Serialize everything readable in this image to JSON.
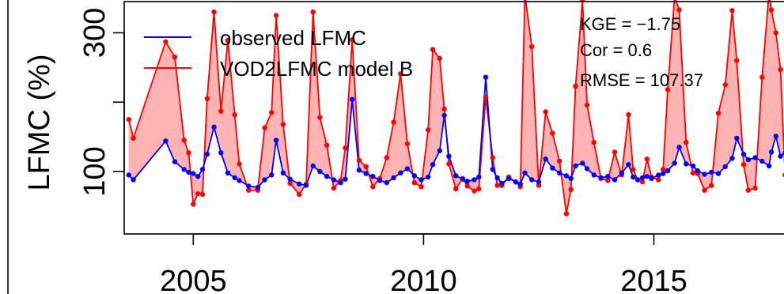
{
  "chart_data": {
    "type": "line",
    "title": "",
    "xlabel": "",
    "ylabel": "LFMC (%)",
    "xlim": [
      2003.5,
      2018.1
    ],
    "ylim": [
      10,
      345
    ],
    "x_ticks": [
      2005,
      2010,
      2015
    ],
    "x_tick_labels": [
      "2005",
      "2010",
      "2015"
    ],
    "y_ticks": [
      100,
      200,
      300
    ],
    "y_tick_labels": [
      "100",
      "",
      "300"
    ],
    "grid": false,
    "legend_position": "top-left",
    "annotations": [
      "KGE = −1.75",
      "Cor = 0.6",
      "RMSE = 107.37"
    ],
    "colors": {
      "observed": "#0000ff",
      "model": "#ff0000",
      "band": "#ffb3b3"
    },
    "series": [
      {
        "name": "observed LFMC",
        "points": [
          [
            2003.6,
            95
          ],
          [
            2003.7,
            88
          ],
          [
            2004.4,
            144
          ],
          [
            2004.6,
            114
          ],
          [
            2004.8,
            103
          ],
          [
            2004.9,
            99
          ],
          [
            2005.0,
            97
          ],
          [
            2005.1,
            93
          ],
          [
            2005.2,
            103
          ],
          [
            2005.3,
            125
          ],
          [
            2005.45,
            164
          ],
          [
            2005.6,
            127
          ],
          [
            2005.75,
            98
          ],
          [
            2005.9,
            91
          ],
          [
            2006.0,
            87
          ],
          [
            2006.2,
            79
          ],
          [
            2006.4,
            77
          ],
          [
            2006.55,
            88
          ],
          [
            2006.7,
            95
          ],
          [
            2006.8,
            145
          ],
          [
            2006.95,
            98
          ],
          [
            2007.1,
            89
          ],
          [
            2007.3,
            82
          ],
          [
            2007.45,
            80
          ],
          [
            2007.6,
            108
          ],
          [
            2007.75,
            100
          ],
          [
            2007.9,
            93
          ],
          [
            2008.05,
            88
          ],
          [
            2008.2,
            84
          ],
          [
            2008.3,
            89
          ],
          [
            2008.45,
            204
          ],
          [
            2008.6,
            102
          ],
          [
            2008.75,
            97
          ],
          [
            2008.9,
            93
          ],
          [
            2009.05,
            87
          ],
          [
            2009.2,
            84
          ],
          [
            2009.35,
            91
          ],
          [
            2009.5,
            98
          ],
          [
            2009.65,
            104
          ],
          [
            2009.8,
            94
          ],
          [
            2009.95,
            88
          ],
          [
            2010.1,
            92
          ],
          [
            2010.2,
            110
          ],
          [
            2010.35,
            130
          ],
          [
            2010.45,
            181
          ],
          [
            2010.55,
            122
          ],
          [
            2010.7,
            94
          ],
          [
            2010.85,
            89
          ],
          [
            2010.95,
            86
          ],
          [
            2011.1,
            88
          ],
          [
            2011.2,
            92
          ],
          [
            2011.35,
            236
          ],
          [
            2011.5,
            103
          ],
          [
            2011.6,
            91
          ],
          [
            2011.7,
            83
          ],
          [
            2011.85,
            90
          ],
          [
            2012.0,
            85
          ],
          [
            2012.1,
            82
          ],
          [
            2012.2,
            98
          ],
          [
            2012.35,
            88
          ],
          [
            2012.5,
            85
          ],
          [
            2012.65,
            118
          ],
          [
            2012.8,
            105
          ],
          [
            2012.95,
            98
          ],
          [
            2013.1,
            94
          ],
          [
            2013.2,
            90
          ],
          [
            2013.3,
            108
          ],
          [
            2013.45,
            112
          ],
          [
            2013.55,
            104
          ],
          [
            2013.7,
            95
          ],
          [
            2013.85,
            91
          ],
          [
            2014.0,
            93
          ],
          [
            2014.15,
            88
          ],
          [
            2014.3,
            98
          ],
          [
            2014.45,
            110
          ],
          [
            2014.55,
            92
          ],
          [
            2014.65,
            88
          ],
          [
            2014.75,
            91
          ],
          [
            2014.85,
            93
          ],
          [
            2014.95,
            90
          ],
          [
            2015.1,
            95
          ],
          [
            2015.2,
            97
          ],
          [
            2015.3,
            101
          ],
          [
            2015.45,
            112
          ],
          [
            2015.55,
            135
          ],
          [
            2015.7,
            111
          ],
          [
            2015.85,
            108
          ],
          [
            2015.95,
            101
          ],
          [
            2016.1,
            96
          ],
          [
            2016.25,
            99
          ],
          [
            2016.4,
            97
          ],
          [
            2016.55,
            107
          ],
          [
            2016.7,
            119
          ],
          [
            2016.8,
            148
          ],
          [
            2016.95,
            125
          ],
          [
            2017.05,
            117
          ],
          [
            2017.2,
            120
          ],
          [
            2017.35,
            115
          ],
          [
            2017.5,
            108
          ],
          [
            2017.55,
            128
          ],
          [
            2017.65,
            151
          ],
          [
            2017.75,
            122
          ],
          [
            2017.85,
            127
          ],
          [
            2017.95,
            111
          ],
          [
            2018.0,
            105
          ],
          [
            2018.05,
            92
          ]
        ]
      },
      {
        "name": "VOD2LFMC model B",
        "points": [
          [
            2003.6,
            175
          ],
          [
            2003.7,
            148
          ],
          [
            2004.4,
            287
          ],
          [
            2004.6,
            265
          ],
          [
            2004.8,
            145
          ],
          [
            2004.9,
            127
          ],
          [
            2005.0,
            53
          ],
          [
            2005.1,
            68
          ],
          [
            2005.2,
            67
          ],
          [
            2005.3,
            205
          ],
          [
            2005.45,
            330
          ],
          [
            2005.6,
            187
          ],
          [
            2005.75,
            289
          ],
          [
            2005.9,
            182
          ],
          [
            2006.0,
            111
          ],
          [
            2006.2,
            73
          ],
          [
            2006.4,
            73
          ],
          [
            2006.55,
            163
          ],
          [
            2006.7,
            185
          ],
          [
            2006.8,
            325
          ],
          [
            2006.95,
            168
          ],
          [
            2007.1,
            83
          ],
          [
            2007.3,
            67
          ],
          [
            2007.45,
            82
          ],
          [
            2007.6,
            330
          ],
          [
            2007.75,
            178
          ],
          [
            2007.9,
            138
          ],
          [
            2008.05,
            76
          ],
          [
            2008.2,
            87
          ],
          [
            2008.3,
            134
          ],
          [
            2008.45,
            290
          ],
          [
            2008.6,
            116
          ],
          [
            2008.75,
            107
          ],
          [
            2008.9,
            78
          ],
          [
            2009.05,
            90
          ],
          [
            2009.2,
            120
          ],
          [
            2009.35,
            171
          ],
          [
            2009.5,
            241
          ],
          [
            2009.65,
            140
          ],
          [
            2009.8,
            84
          ],
          [
            2009.95,
            78
          ],
          [
            2010.1,
            160
          ],
          [
            2010.2,
            276
          ],
          [
            2010.35,
            263
          ],
          [
            2010.45,
            190
          ],
          [
            2010.55,
            111
          ],
          [
            2010.7,
            75
          ],
          [
            2010.85,
            90
          ],
          [
            2010.95,
            79
          ],
          [
            2011.1,
            72
          ],
          [
            2011.2,
            75
          ],
          [
            2011.35,
            207
          ],
          [
            2011.5,
            120
          ],
          [
            2011.6,
            80
          ],
          [
            2011.7,
            80
          ],
          [
            2011.85,
            92
          ],
          [
            2012.0,
            85
          ],
          [
            2012.1,
            78
          ],
          [
            2012.2,
            355
          ],
          [
            2012.35,
            280
          ],
          [
            2012.5,
            80
          ],
          [
            2012.65,
            186
          ],
          [
            2012.8,
            155
          ],
          [
            2012.95,
            115
          ],
          [
            2013.1,
            39
          ],
          [
            2013.2,
            74
          ],
          [
            2013.3,
            223
          ],
          [
            2013.45,
            347
          ],
          [
            2013.55,
            196
          ],
          [
            2013.7,
            142
          ],
          [
            2013.85,
            90
          ],
          [
            2014.0,
            87
          ],
          [
            2014.15,
            128
          ],
          [
            2014.3,
            95
          ],
          [
            2014.45,
            182
          ],
          [
            2014.55,
            103
          ],
          [
            2014.65,
            88
          ],
          [
            2014.75,
            85
          ],
          [
            2014.85,
            118
          ],
          [
            2014.95,
            92
          ],
          [
            2015.1,
            88
          ],
          [
            2015.2,
            103
          ],
          [
            2015.3,
            218
          ],
          [
            2015.45,
            352
          ],
          [
            2015.55,
            333
          ],
          [
            2015.7,
            142
          ],
          [
            2015.85,
            98
          ],
          [
            2015.95,
            97
          ],
          [
            2016.1,
            73
          ],
          [
            2016.25,
            80
          ],
          [
            2016.4,
            184
          ],
          [
            2016.55,
            225
          ],
          [
            2016.7,
            332
          ],
          [
            2016.8,
            260
          ],
          [
            2016.95,
            110
          ],
          [
            2017.05,
            73
          ],
          [
            2017.2,
            76
          ],
          [
            2017.35,
            236
          ],
          [
            2017.5,
            358
          ],
          [
            2017.55,
            333
          ],
          [
            2017.65,
            300
          ],
          [
            2017.75,
            247
          ],
          [
            2017.85,
            95
          ],
          [
            2017.95,
            95
          ],
          [
            2018.0,
            94
          ],
          [
            2018.05,
            90
          ]
        ]
      }
    ]
  }
}
